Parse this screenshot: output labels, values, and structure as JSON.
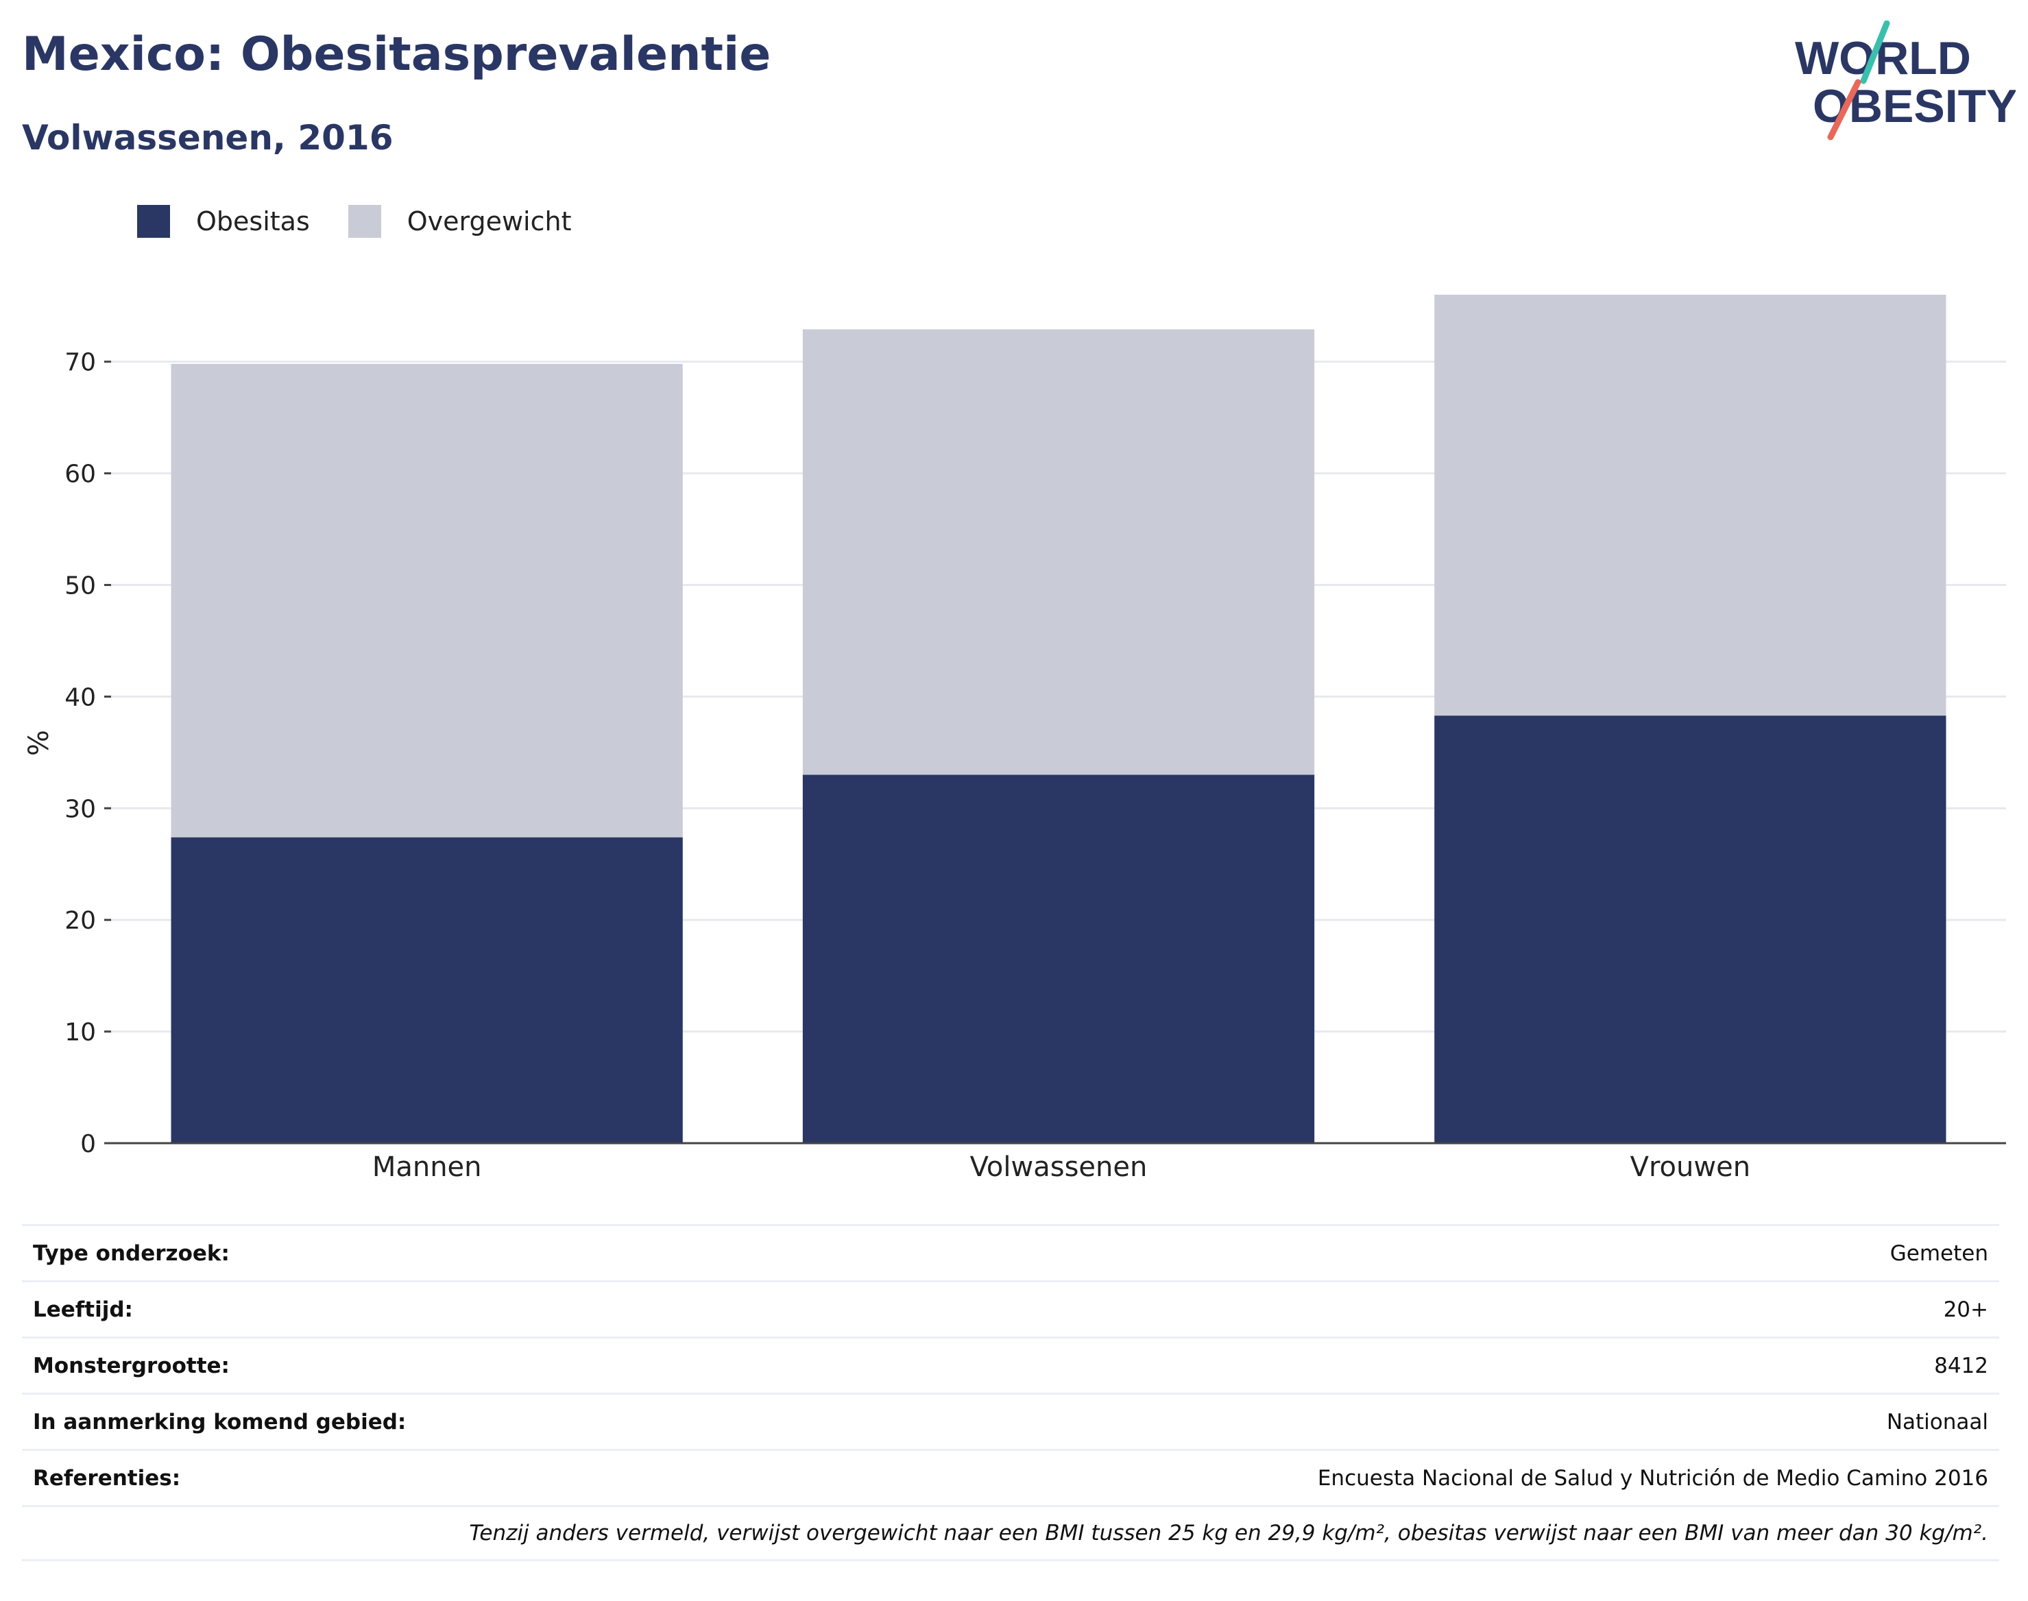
{
  "header": {
    "title": "Mexico: Obesitasprevalentie",
    "subtitle": "Volwassenen, 2016"
  },
  "logo": {
    "line1": "WORLD",
    "line2": "OBESITY",
    "colors": {
      "text": "#2a3764",
      "slash_top": "#3bbfad",
      "slash_bottom": "#e8685a"
    }
  },
  "legend": [
    {
      "label": "Obesitas",
      "color": "#2a3764"
    },
    {
      "label": "Overgewicht",
      "color": "#c9cbd7"
    }
  ],
  "chart_data": {
    "type": "bar",
    "stacked": true,
    "categories": [
      "Mannen",
      "Volwassenen",
      "Vrouwen"
    ],
    "series": [
      {
        "name": "Obesitas",
        "color": "#2a3764",
        "values": [
          27.4,
          33.0,
          38.3
        ]
      },
      {
        "name": "Overgewicht",
        "color": "#c9cbd7",
        "values": [
          42.4,
          39.9,
          37.7
        ]
      }
    ],
    "ylabel": "%",
    "ylim": [
      0,
      76
    ],
    "yticks": [
      0,
      10,
      20,
      30,
      40,
      50,
      60,
      70
    ],
    "grid": true,
    "legend_position": "top-left"
  },
  "info": {
    "rows": [
      {
        "label": "Type onderzoek:",
        "value": "Gemeten"
      },
      {
        "label": "Leeftijd:",
        "value": "20+"
      },
      {
        "label": "Monstergrootte:",
        "value": "8412"
      },
      {
        "label": "In aanmerking komend gebied:",
        "value": "Nationaal"
      },
      {
        "label": "Referenties:",
        "value": "Encuesta Nacional de Salud y Nutrición de Medio Camino 2016"
      }
    ],
    "note": "Tenzij anders vermeld, verwijst overgewicht naar een BMI tussen 25 kg en 29,9 kg/m², obesitas verwijst naar een BMI van meer dan 30 kg/m²."
  }
}
